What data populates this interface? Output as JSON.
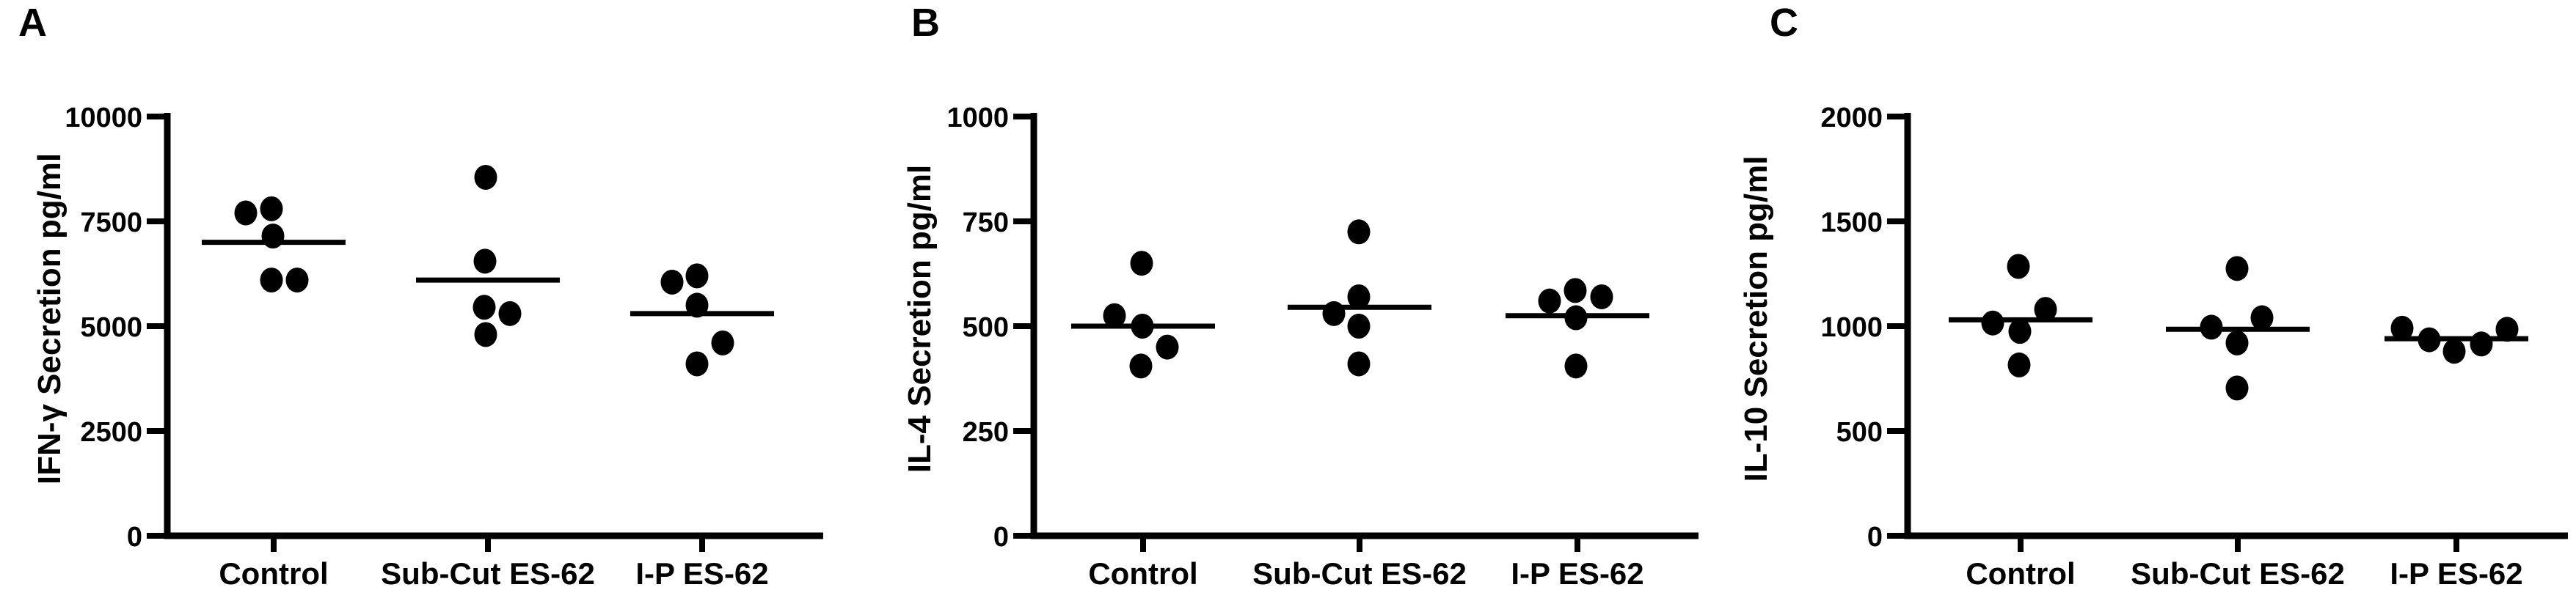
{
  "figure": {
    "background": "#ffffff",
    "ink_color": "#000000",
    "x_categories": [
      "Control",
      "Sub-Cut ES-62",
      "I-P ES-62"
    ]
  },
  "chart_data": [
    {
      "type": "scatter",
      "panel_label": "A",
      "title": "",
      "xlabel": "",
      "ylabel": "IFN-γ Secretion pg/ml",
      "ylim": [
        0,
        10000
      ],
      "yticks": [
        0,
        2500,
        5000,
        7500,
        10000
      ],
      "categories": [
        "Control",
        "Sub-Cut ES-62",
        "I-P ES-62"
      ],
      "grid": false,
      "legend": "none",
      "point_style": {
        "marker": "filled-circle",
        "color": "#000000"
      },
      "series": [
        {
          "group": "Control",
          "values": [
            7700,
            7800,
            7150,
            6100,
            6100
          ],
          "mean_line": 7000,
          "x_jitter": [
            -38,
            -3,
            -1,
            -3,
            32
          ]
        },
        {
          "group": "Sub-Cut ES-62",
          "values": [
            8550,
            6550,
            5450,
            5300,
            4800
          ],
          "mean_line": 6100,
          "x_jitter": [
            -3,
            -4,
            -5,
            30,
            -3
          ]
        },
        {
          "group": "I-P ES-62",
          "values": [
            6050,
            6200,
            5500,
            4600,
            4100
          ],
          "mean_line": 5300,
          "x_jitter": [
            -41,
            -7,
            -7,
            28,
            -7
          ]
        }
      ]
    },
    {
      "type": "scatter",
      "panel_label": "B",
      "title": "",
      "xlabel": "",
      "ylabel": "IL-4 Secretion pg/ml",
      "ylim": [
        0,
        1000
      ],
      "yticks": [
        0,
        250,
        500,
        750,
        1000
      ],
      "categories": [
        "Control",
        "Sub-Cut ES-62",
        "I-P ES-62"
      ],
      "grid": false,
      "legend": "none",
      "point_style": {
        "marker": "filled-circle",
        "color": "#000000"
      },
      "series": [
        {
          "group": "Control",
          "values": [
            650,
            525,
            500,
            450,
            405
          ],
          "mean_line": 500,
          "x_jitter": [
            -2,
            -39,
            -1,
            33,
            -3
          ]
        },
        {
          "group": "Sub-Cut ES-62",
          "values": [
            725,
            570,
            530,
            500,
            410
          ],
          "mean_line": 545,
          "x_jitter": [
            -1,
            -1,
            -35,
            -1,
            -1
          ]
        },
        {
          "group": "I-P ES-62",
          "values": [
            560,
            585,
            570,
            520,
            405
          ],
          "mean_line": 525,
          "x_jitter": [
            -38,
            -3,
            33,
            -2,
            -2
          ]
        }
      ]
    },
    {
      "type": "scatter",
      "panel_label": "C",
      "title": "",
      "xlabel": "",
      "ylabel": "IL-10 Secretion pg/ml",
      "ylim": [
        0,
        2000
      ],
      "yticks": [
        0,
        500,
        1000,
        1500,
        2000
      ],
      "categories": [
        "Control",
        "Sub-Cut ES-62",
        "I-P ES-62"
      ],
      "grid": false,
      "legend": "none",
      "point_style": {
        "marker": "filled-circle",
        "color": "#000000"
      },
      "series": [
        {
          "group": "Control",
          "values": [
            1285,
            1080,
            1015,
            975,
            815
          ],
          "mean_line": 1030,
          "x_jitter": [
            -3,
            34,
            -38,
            -1,
            -2
          ]
        },
        {
          "group": "Sub-Cut ES-62",
          "values": [
            1275,
            1040,
            995,
            920,
            705
          ],
          "mean_line": 985,
          "x_jitter": [
            -1,
            33,
            -36,
            -1,
            -1
          ]
        },
        {
          "group": "I-P ES-62",
          "values": [
            990,
            935,
            880,
            915,
            985
          ],
          "mean_line": 940,
          "x_jitter": [
            -74,
            -37,
            -3,
            34,
            69
          ]
        }
      ]
    }
  ]
}
